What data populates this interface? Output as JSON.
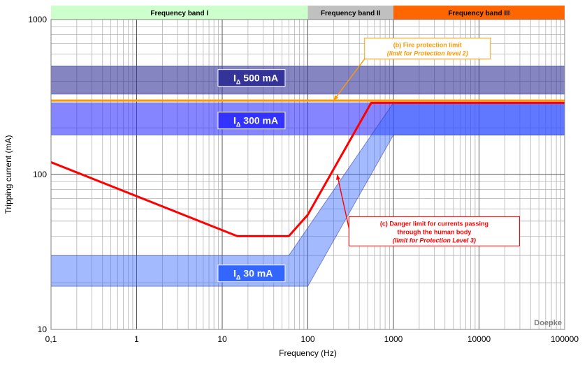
{
  "chart_data": {
    "type": "line",
    "x_scale": "log",
    "y_scale": "log",
    "xlim": [
      0.1,
      100000
    ],
    "ylim": [
      10,
      1000
    ],
    "xlabel": "Frequency (Hz)",
    "ylabel": "Tripping current (mA)",
    "x_ticks": [
      "0,1",
      "1",
      "10",
      "100",
      "1000",
      "10000",
      "100000"
    ],
    "y_ticks": [
      "10",
      "100",
      "1000"
    ],
    "grid": true,
    "frequency_bands": [
      {
        "label": "Frequency band I",
        "from": 0.1,
        "to": 100,
        "color": "#ccffcc"
      },
      {
        "label": "Frequency band II",
        "from": 100,
        "to": 1000,
        "color": "#c0c0c0"
      },
      {
        "label": "Frequency band III",
        "from": 1000,
        "to": 100000,
        "color": "#ff6600"
      }
    ],
    "bands": [
      {
        "label_main": "I",
        "label_sub": "Δ",
        "label_value": "500 mA",
        "fill": "#333399",
        "opacity": 0.6,
        "lower": [
          [
            0.1,
            330
          ],
          [
            100000,
            330
          ]
        ],
        "upper": [
          [
            0.1,
            500
          ],
          [
            100000,
            500
          ]
        ],
        "label_at": [
          22,
          420
        ]
      },
      {
        "label_main": "I",
        "label_sub": "Δ",
        "label_value": "300 mA",
        "fill": "#3333ff",
        "opacity": 0.6,
        "lower": [
          [
            0.1,
            180
          ],
          [
            1000,
            180
          ],
          [
            100000,
            180
          ]
        ],
        "upper": [
          [
            0.1,
            290
          ],
          [
            550,
            290
          ],
          [
            100000,
            290
          ]
        ],
        "label_at": [
          22,
          223
        ]
      },
      {
        "label_main": "I",
        "label_sub": "Δ",
        "label_value": "30 mA",
        "fill": "#3366ff",
        "opacity": 0.45,
        "lower": [
          [
            0.1,
            19
          ],
          [
            100,
            19
          ],
          [
            1000,
            180
          ],
          [
            100000,
            180
          ]
        ],
        "upper": [
          [
            0.1,
            30
          ],
          [
            60,
            30
          ],
          [
            1000,
            290
          ],
          [
            100000,
            290
          ]
        ],
        "label_at": [
          22,
          23
        ]
      }
    ],
    "series": [
      {
        "name": "(b) Fire protection limit",
        "color": "#ff9900",
        "width": 3,
        "points": [
          [
            0.1,
            300
          ],
          [
            100000,
            300
          ]
        ]
      },
      {
        "name": "(c) Danger limit for currents passing through the human body",
        "color": "#ff0000",
        "width": 3,
        "points": [
          [
            0.1,
            120
          ],
          [
            15,
            40
          ],
          [
            60,
            40
          ],
          [
            100,
            55
          ],
          [
            550,
            290
          ],
          [
            100000,
            290
          ]
        ]
      }
    ],
    "annotations": [
      {
        "line1": "(b) Fire protection limit",
        "line2": "(limit for Protection level 2)",
        "color": "#ff9900",
        "box_at": [
          2500,
          650
        ],
        "arrow_to": [
          200,
          300
        ]
      },
      {
        "line1": "(c) Danger limit for currents passing",
        "line2": "through the human body",
        "line3": "(limit for Protection Level 3)",
        "color": "#ff0000",
        "box_at": [
          3000,
          43
        ],
        "arrow_to": [
          220,
          100
        ]
      }
    ],
    "watermark": "Doepke"
  }
}
